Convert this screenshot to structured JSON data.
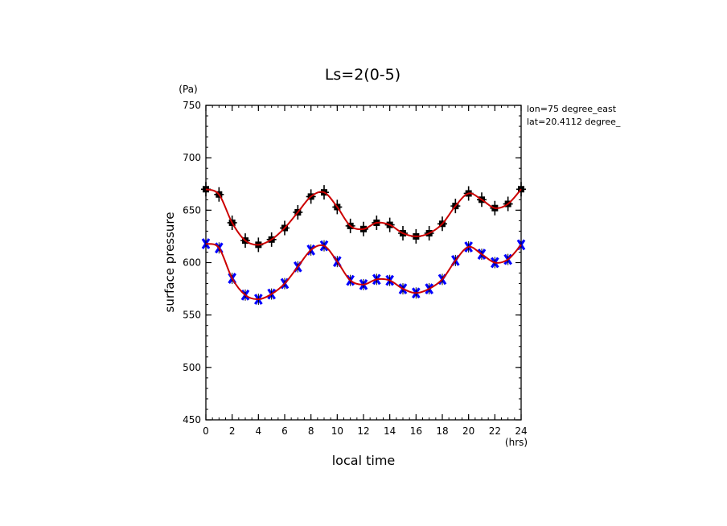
{
  "chart_data": {
    "type": "line",
    "title": "Ls=2(0-5)",
    "xlabel": "local time",
    "ylabel": "surface pressure",
    "x_unit": "(hrs)",
    "y_unit": "(Pa)",
    "xlim": [
      0,
      24
    ],
    "ylim": [
      450,
      750
    ],
    "x_ticks": [
      0,
      2,
      4,
      6,
      8,
      10,
      12,
      14,
      16,
      18,
      20,
      22,
      24
    ],
    "y_ticks": [
      450,
      500,
      550,
      600,
      650,
      700,
      750
    ],
    "annotations": [
      "lon=75 degree_east",
      "lat=20.4112 degree_"
    ],
    "x": [
      0,
      1,
      2,
      3,
      4,
      5,
      6,
      7,
      8,
      9,
      10,
      11,
      12,
      13,
      14,
      15,
      16,
      17,
      18,
      19,
      20,
      21,
      22,
      23,
      24
    ],
    "series": [
      {
        "color": "#cc0000",
        "values": [
          670,
          665,
          638,
          621,
          617,
          622,
          633,
          648,
          663,
          667,
          653,
          635,
          632,
          638,
          636,
          628,
          625,
          628,
          637,
          654,
          666,
          660,
          652,
          656,
          670
        ],
        "marker_color": "#000000",
        "marker": "square-plus"
      },
      {
        "color": "#cc0000",
        "values": [
          618,
          614,
          585,
          569,
          565,
          570,
          580,
          596,
          612,
          616,
          601,
          583,
          579,
          584,
          583,
          575,
          571,
          575,
          584,
          602,
          615,
          608,
          600,
          603,
          617
        ],
        "marker_color": "#0000ff",
        "marker": "x"
      }
    ]
  }
}
